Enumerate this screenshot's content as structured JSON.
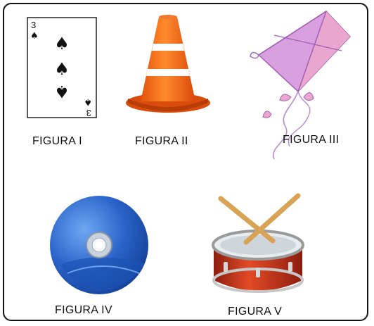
{
  "figures": [
    {
      "label": "FIGURA I",
      "icon": "playing-card-icon",
      "card": {
        "rank": "3",
        "suit": "♠"
      }
    },
    {
      "label": "FIGURA II",
      "icon": "traffic-cone-icon"
    },
    {
      "label": "FIGURA III",
      "icon": "kite-icon"
    },
    {
      "label": "FIGURA IV",
      "icon": "compact-disc-icon"
    },
    {
      "label": "FIGURA V",
      "icon": "drum-icon"
    }
  ],
  "colors": {
    "cone": "#f46a12",
    "kite": "#c98ad6",
    "disc": "#2a63c9",
    "drum": "#c7391e",
    "sticks": "#d9a355"
  }
}
